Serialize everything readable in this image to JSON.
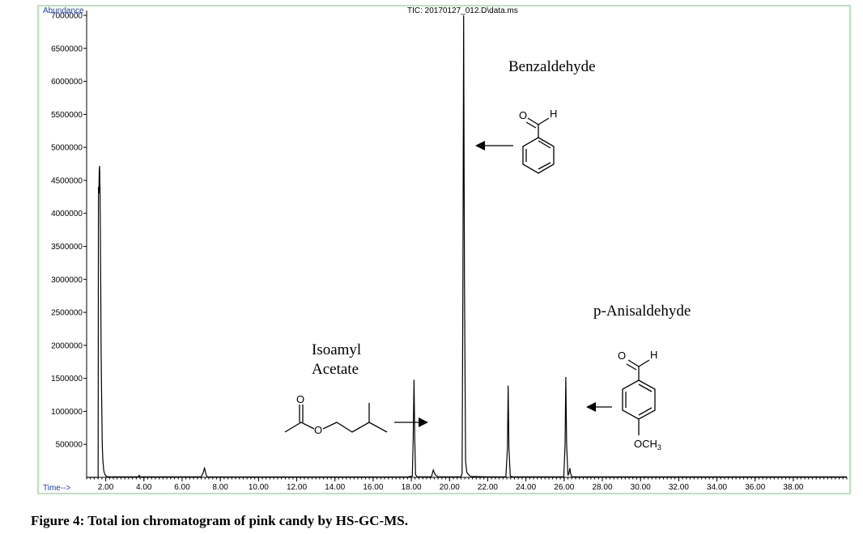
{
  "figure": {
    "caption": "Figure 4: Total ion chromatogram of pink candy by HS-GC-MS."
  },
  "chart_data": {
    "type": "line",
    "title": "TIC: 20170127_012.D\\data.ms",
    "ylabel": "Abundance",
    "xlabel": "Time-->",
    "xlim": [
      1.0,
      40.8
    ],
    "ylim": [
      0,
      7000000
    ],
    "x_ticks": [
      2,
      4,
      6,
      8,
      10,
      12,
      14,
      16,
      18,
      20,
      22,
      24,
      26,
      28,
      30,
      32,
      34,
      36,
      38
    ],
    "x_tick_labels": [
      "2.00",
      "4.00",
      "6.00",
      "8.00",
      "10.00",
      "12.00",
      "14.00",
      "16.00",
      "18.00",
      "20.00",
      "22.00",
      "24.00",
      "26.00",
      "28.00",
      "30.00",
      "32.00",
      "34.00",
      "36.00",
      "38.00"
    ],
    "y_ticks": [
      500000,
      1000000,
      1500000,
      2000000,
      2500000,
      3000000,
      3500000,
      4000000,
      4500000,
      5000000,
      5500000,
      6000000,
      6500000,
      7000000
    ],
    "y_tick_labels": [
      "500000",
      "1000000",
      "1500000",
      "2000000",
      "2500000",
      "3000000",
      "3500000",
      "4000000",
      "4500000",
      "5000000",
      "5500000",
      "6000000",
      "6500000",
      "7000000"
    ],
    "line_color": "#000000",
    "frame_color": "#7fd77f",
    "axis_label_color": "#1a3fb0",
    "series": [
      {
        "x": [
          1.0,
          1.5,
          1.6,
          1.62,
          1.64,
          1.66,
          1.68,
          1.7,
          1.72,
          1.74,
          1.76,
          1.78,
          1.8,
          1.82,
          1.85,
          1.9,
          1.95,
          2.0,
          2.1,
          3.0,
          3.7,
          3.75,
          3.8,
          4.5,
          7.0,
          7.1,
          7.17,
          7.23,
          7.3,
          7.5,
          14.0,
          17.8,
          18.05,
          18.1,
          18.14,
          18.18,
          18.22,
          18.3,
          18.6,
          19.05,
          19.15,
          19.25,
          19.4,
          20.6,
          20.66,
          20.7,
          20.74,
          20.78,
          20.84,
          20.9,
          21.0,
          21.1,
          22.0,
          22.95,
          23.03,
          23.07,
          23.11,
          23.18,
          23.3,
          23.8,
          25.0,
          25.98,
          26.05,
          26.09,
          26.13,
          26.2,
          26.25,
          26.3,
          26.34,
          26.4,
          26.5,
          27.5,
          40.8
        ],
        "y": [
          0,
          0,
          0,
          4400000,
          4300000,
          4650000,
          4720000,
          4400000,
          3700000,
          2800000,
          1900000,
          1350000,
          900000,
          500000,
          250000,
          100000,
          50000,
          25000,
          8000,
          8000,
          8000,
          30000,
          8000,
          8000,
          8000,
          70000,
          140000,
          70000,
          8000,
          6000,
          6000,
          6000,
          20000,
          600000,
          1480000,
          600000,
          40000,
          10000,
          8000,
          8000,
          110000,
          40000,
          8000,
          8000,
          60000,
          3000000,
          7000000,
          3000000,
          250000,
          80000,
          40000,
          15000,
          8000,
          8000,
          450000,
          1390000,
          450000,
          20000,
          8000,
          8000,
          8000,
          8000,
          500000,
          1520000,
          500000,
          30000,
          60000,
          140000,
          60000,
          8000,
          8000,
          8000,
          8000
        ]
      }
    ],
    "annotations": [
      {
        "label": "Benzaldehyde",
        "peak_time": 20.7
      },
      {
        "label": "p-Anisaldehyde",
        "peak_time": 26.09
      },
      {
        "label_line1": "Isoamyl",
        "label_line2": "Acetate",
        "peak_time": 18.14
      }
    ],
    "structure_text": {
      "aldehyde_o": "O",
      "aldehyde_h": "H",
      "ester_o_carbonyl": "O",
      "ester_o_ether": "O",
      "methoxy": "OCH",
      "methoxy_sub": "3"
    }
  }
}
